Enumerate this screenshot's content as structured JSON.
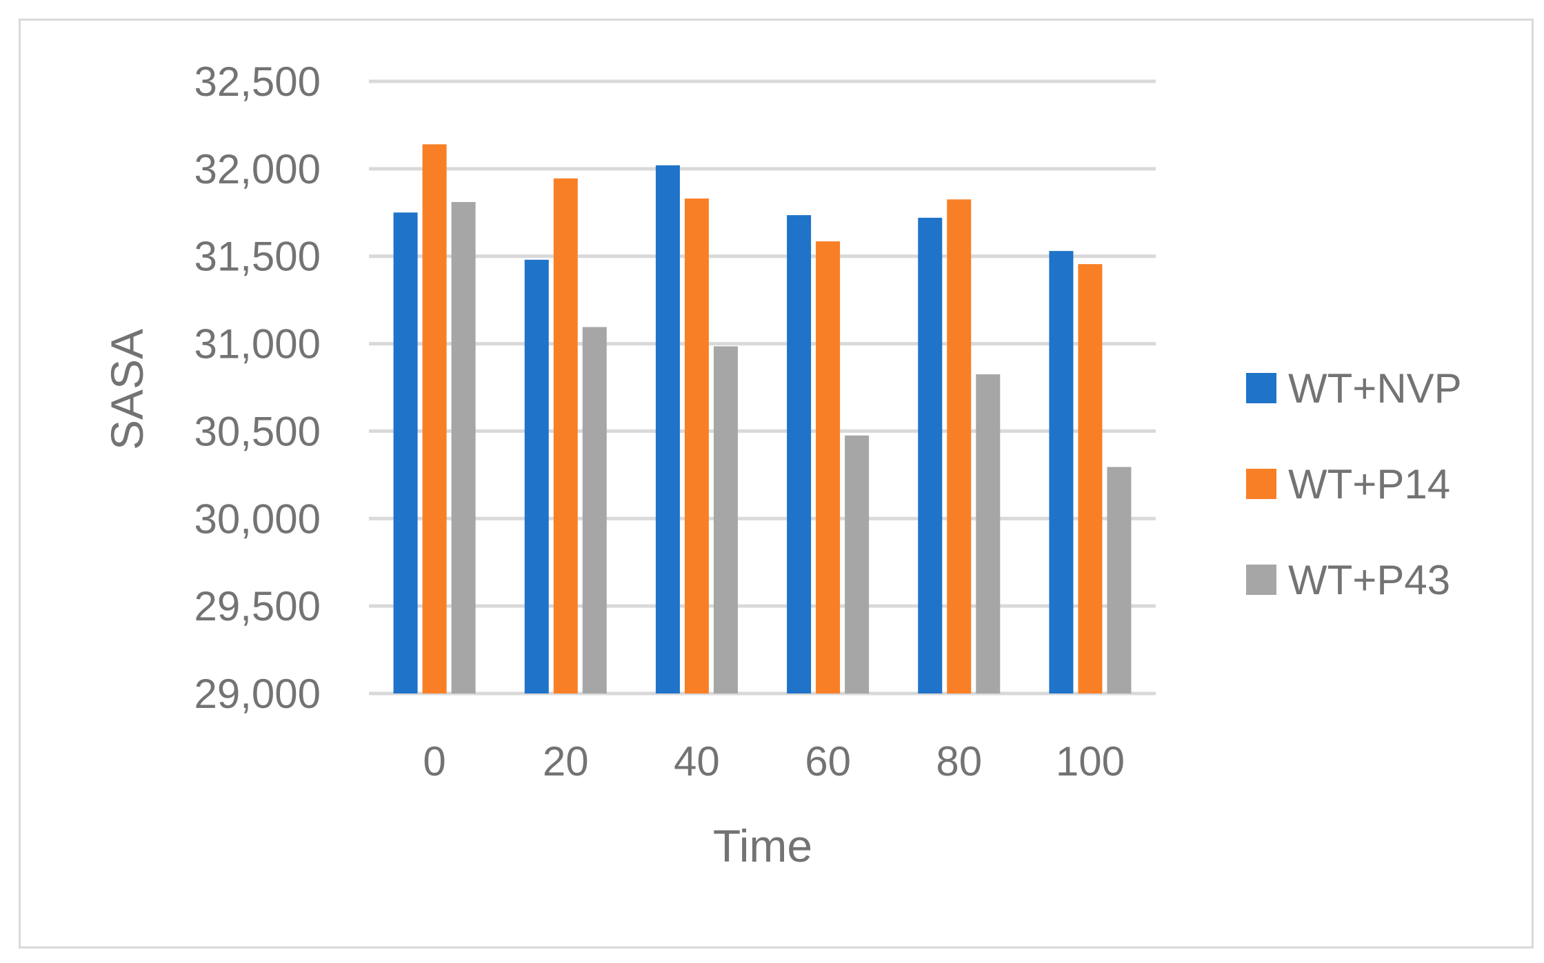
{
  "chart_data": {
    "type": "bar",
    "title": "",
    "xlabel": "Time",
    "ylabel": "SASA",
    "categories": [
      "0",
      "20",
      "40",
      "60",
      "80",
      "100"
    ],
    "ylim": [
      29000,
      32500
    ],
    "yticks": [
      29000,
      29500,
      30000,
      30500,
      31000,
      31500,
      32000,
      32500
    ],
    "ytick_labels": [
      "29,000",
      "29,500",
      "30,000",
      "30,500",
      "31,000",
      "31,500",
      "32,000",
      "32,500"
    ],
    "grid": true,
    "legend_position": "right",
    "series": [
      {
        "name": "WT+NVP",
        "color": "#1f73c8",
        "values": [
          31750,
          31480,
          32020,
          31735,
          31720,
          31530
        ]
      },
      {
        "name": "WT+P14",
        "color": "#f97f26",
        "values": [
          32140,
          31945,
          31830,
          31585,
          31825,
          31455
        ]
      },
      {
        "name": "WT+P43",
        "color": "#a6a6a6",
        "values": [
          31810,
          31095,
          30985,
          30475,
          30825,
          30295
        ]
      }
    ]
  }
}
